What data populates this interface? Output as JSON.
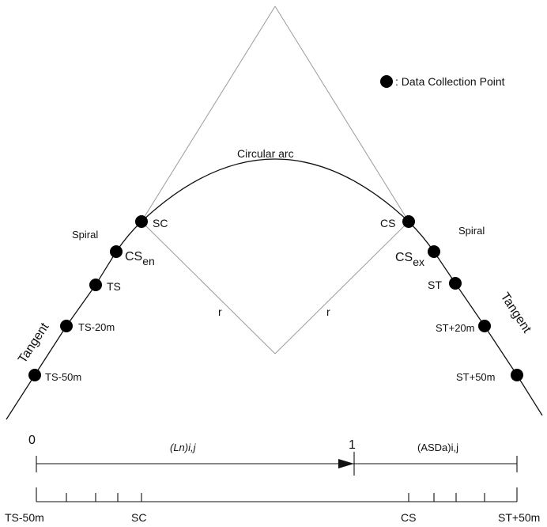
{
  "legend": {
    "marker": "●",
    "text": ": Data Collection Point"
  },
  "curve": {
    "arc_label": "Circular arc",
    "spiral_left": "Spiral",
    "spiral_right": "Spiral",
    "tangent_left": "Tangent",
    "tangent_right": "Tangent",
    "radius_left": "r",
    "radius_right": "r"
  },
  "points": {
    "sc": "SC",
    "cs_en_main": "CS",
    "cs_en_sub": "en",
    "ts": "TS",
    "ts_20": "TS-20m",
    "ts_50": "TS-50m",
    "cs": "CS",
    "cs_ex_main": "CS",
    "cs_ex_sub": "ex",
    "st": "ST",
    "st_20": "ST+20m",
    "st_50": "ST+50m"
  },
  "axis": {
    "start_label": "0",
    "mid_label": "1",
    "left_segment_label": "(Ln)i,j",
    "right_segment_label": "(ASDa)i,j",
    "tick_ts50": "TS-50m",
    "tick_sc": "SC",
    "tick_cs": "CS",
    "tick_st50": "ST+50m"
  },
  "colors": {
    "guide_lines": "#9a9a9a",
    "curve": "#111111",
    "points": "#000000"
  }
}
